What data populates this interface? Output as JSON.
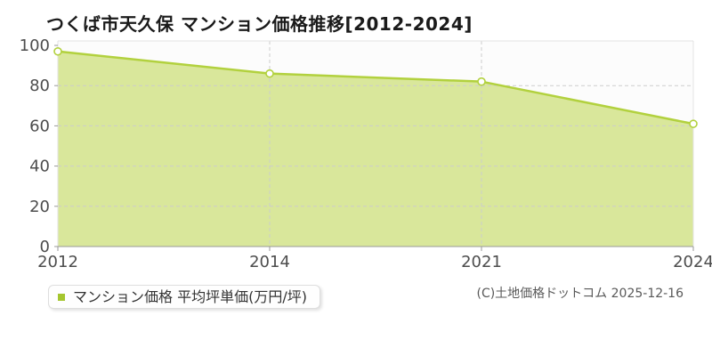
{
  "title": "つくば市天久保 マンション価格推移[2012-2024]",
  "legend": {
    "label": "マンション価格 平均坪単価(万円/坪)",
    "marker_color": "#a5c62f"
  },
  "footer": {
    "copyright": "(C)土地価格ドットコム 2025-12-16"
  },
  "chart_data": {
    "type": "area",
    "categories": [
      "2012",
      "2014",
      "2021",
      "2024"
    ],
    "series": [
      {
        "name": "マンション価格 平均坪単価(万円/坪)",
        "values": [
          97,
          86,
          82,
          61
        ]
      }
    ],
    "title": "つくば市天久保 マンション価格推移[2012-2024]",
    "xlabel": "",
    "ylabel": "",
    "ylim": [
      0,
      100
    ],
    "yticks": [
      0,
      20,
      40,
      60,
      80,
      100
    ],
    "grid": true,
    "legend_position": "bottom-left",
    "line_color": "#b2d13e",
    "fill_color": "#d9e79b",
    "marker_style": "open-circle",
    "gridline_color": "#cccccc",
    "axis_color": "#999999",
    "border_color": "#e3e3e3",
    "plot_bg_color": "#fcfcfc"
  }
}
